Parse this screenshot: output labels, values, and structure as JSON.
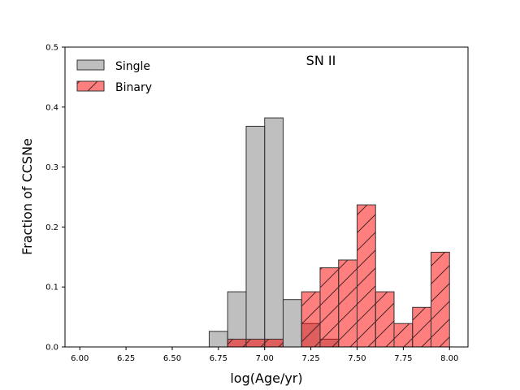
{
  "chart_data": {
    "type": "bar",
    "title": "SN II",
    "xlabel": "log(Age/yr)",
    "ylabel": "Fraction of CCSNe",
    "xlim": [
      5.92,
      8.1
    ],
    "ylim": [
      0,
      0.5
    ],
    "xticks": [
      6.0,
      6.25,
      6.5,
      6.75,
      7.0,
      7.25,
      7.5,
      7.75,
      8.0
    ],
    "xtick_labels": [
      "6.00",
      "6.25",
      "6.50",
      "6.75",
      "7.00",
      "7.25",
      "7.50",
      "7.75",
      "8.00"
    ],
    "yticks": [
      0.0,
      0.1,
      0.2,
      0.3,
      0.4,
      0.5
    ],
    "ytick_labels": [
      "0.0",
      "0.1",
      "0.2",
      "0.3",
      "0.4",
      "0.5"
    ],
    "bin_width": 0.1,
    "legend_position": "upper-left",
    "series": [
      {
        "name": "Single",
        "color": "#808080",
        "edge_color": "#333333",
        "hatch": false,
        "bins": [
          {
            "left": 6.7,
            "value": 0.026
          },
          {
            "left": 6.8,
            "value": 0.092
          },
          {
            "left": 6.9,
            "value": 0.368
          },
          {
            "left": 7.0,
            "value": 0.382
          },
          {
            "left": 7.1,
            "value": 0.079
          },
          {
            "left": 7.2,
            "value": 0.039
          },
          {
            "left": 7.3,
            "value": 0.013
          }
        ]
      },
      {
        "name": "Binary",
        "color": "#ff0000",
        "edge_color": "#333333",
        "hatch": true,
        "bins": [
          {
            "left": 6.8,
            "value": 0.013
          },
          {
            "left": 6.9,
            "value": 0.013
          },
          {
            "left": 7.0,
            "value": 0.013
          },
          {
            "left": 7.2,
            "value": 0.092
          },
          {
            "left": 7.3,
            "value": 0.132
          },
          {
            "left": 7.4,
            "value": 0.145
          },
          {
            "left": 7.5,
            "value": 0.237
          },
          {
            "left": 7.6,
            "value": 0.092
          },
          {
            "left": 7.7,
            "value": 0.039
          },
          {
            "left": 7.8,
            "value": 0.066
          },
          {
            "left": 7.9,
            "value": 0.158
          }
        ]
      }
    ]
  }
}
